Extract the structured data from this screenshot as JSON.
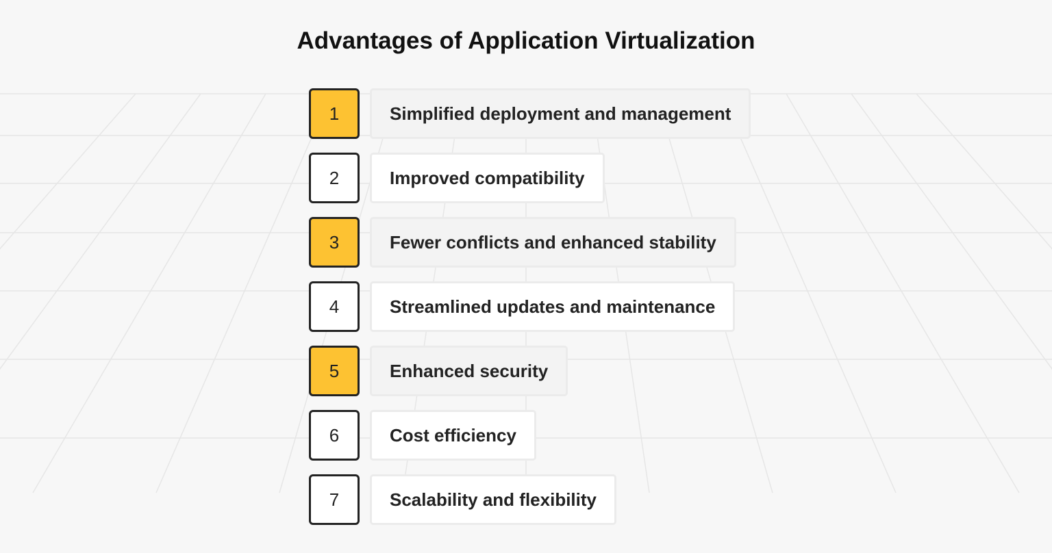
{
  "title": "Advantages of Application Virtualization",
  "accent_color": "#fdc232",
  "items": [
    {
      "number": "1",
      "label": "Simplified deployment and management",
      "highlighted": true
    },
    {
      "number": "2",
      "label": "Improved compatibility",
      "highlighted": false
    },
    {
      "number": "3",
      "label": "Fewer conflicts and enhanced stability",
      "highlighted": true
    },
    {
      "number": "4",
      "label": "Streamlined updates and maintenance",
      "highlighted": false
    },
    {
      "number": "5",
      "label": "Enhanced security",
      "highlighted": true
    },
    {
      "number": "6",
      "label": "Cost efficiency",
      "highlighted": false
    },
    {
      "number": "7",
      "label": "Scalability and flexibility",
      "highlighted": false
    }
  ]
}
